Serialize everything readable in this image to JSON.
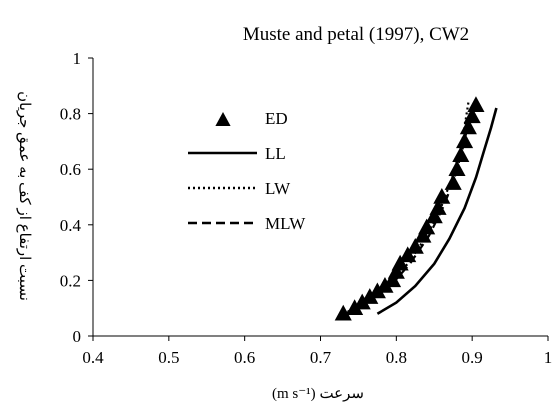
{
  "chart_data": {
    "type": "scatter",
    "title": "Muste and petal (1997), CW2",
    "xlabel": "(m s⁻¹) سرعت",
    "ylabel": "نسبت ارتفاع از کف به عمق جریان",
    "xlim": [
      0.4,
      1.0
    ],
    "ylim": [
      0,
      1
    ],
    "xticks": [
      "0.4",
      "0.5",
      "0.6",
      "0.7",
      "0.8",
      "0.9",
      "1"
    ],
    "yticks": [
      "0",
      "0.2",
      "0.4",
      "0.6",
      "0.8",
      "1"
    ],
    "grid": false,
    "legend_position": "left",
    "series": [
      {
        "name": "ED",
        "style": "triangle-markers",
        "color": "#000000",
        "points": [
          [
            0.73,
            0.08
          ],
          [
            0.745,
            0.1
          ],
          [
            0.755,
            0.12
          ],
          [
            0.765,
            0.14
          ],
          [
            0.775,
            0.16
          ],
          [
            0.785,
            0.18
          ],
          [
            0.795,
            0.2
          ],
          [
            0.8,
            0.23
          ],
          [
            0.805,
            0.26
          ],
          [
            0.815,
            0.29
          ],
          [
            0.825,
            0.32
          ],
          [
            0.835,
            0.36
          ],
          [
            0.84,
            0.39
          ],
          [
            0.85,
            0.43
          ],
          [
            0.855,
            0.46
          ],
          [
            0.86,
            0.5
          ],
          [
            0.875,
            0.55
          ],
          [
            0.88,
            0.6
          ],
          [
            0.885,
            0.65
          ],
          [
            0.89,
            0.7
          ],
          [
            0.895,
            0.75
          ],
          [
            0.9,
            0.79
          ],
          [
            0.905,
            0.83
          ]
        ]
      },
      {
        "name": "LL",
        "style": "solid",
        "color": "#000000",
        "points": [
          [
            0.775,
            0.08
          ],
          [
            0.8,
            0.12
          ],
          [
            0.825,
            0.18
          ],
          [
            0.85,
            0.26
          ],
          [
            0.87,
            0.35
          ],
          [
            0.89,
            0.46
          ],
          [
            0.905,
            0.57
          ],
          [
            0.915,
            0.66
          ],
          [
            0.925,
            0.75
          ],
          [
            0.932,
            0.82
          ]
        ]
      },
      {
        "name": "LW",
        "style": "dotted",
        "color": "#000000",
        "points": [
          [
            0.73,
            0.08
          ],
          [
            0.76,
            0.12
          ],
          [
            0.79,
            0.18
          ],
          [
            0.815,
            0.26
          ],
          [
            0.84,
            0.36
          ],
          [
            0.86,
            0.47
          ],
          [
            0.875,
            0.58
          ],
          [
            0.887,
            0.7
          ],
          [
            0.895,
            0.84
          ]
        ]
      },
      {
        "name": "MLW",
        "style": "dashed",
        "color": "#000000",
        "points": [
          [
            0.732,
            0.08
          ],
          [
            0.762,
            0.12
          ],
          [
            0.792,
            0.18
          ],
          [
            0.818,
            0.26
          ],
          [
            0.843,
            0.36
          ],
          [
            0.863,
            0.47
          ],
          [
            0.878,
            0.58
          ],
          [
            0.89,
            0.7
          ],
          [
            0.898,
            0.82
          ]
        ]
      }
    ]
  }
}
